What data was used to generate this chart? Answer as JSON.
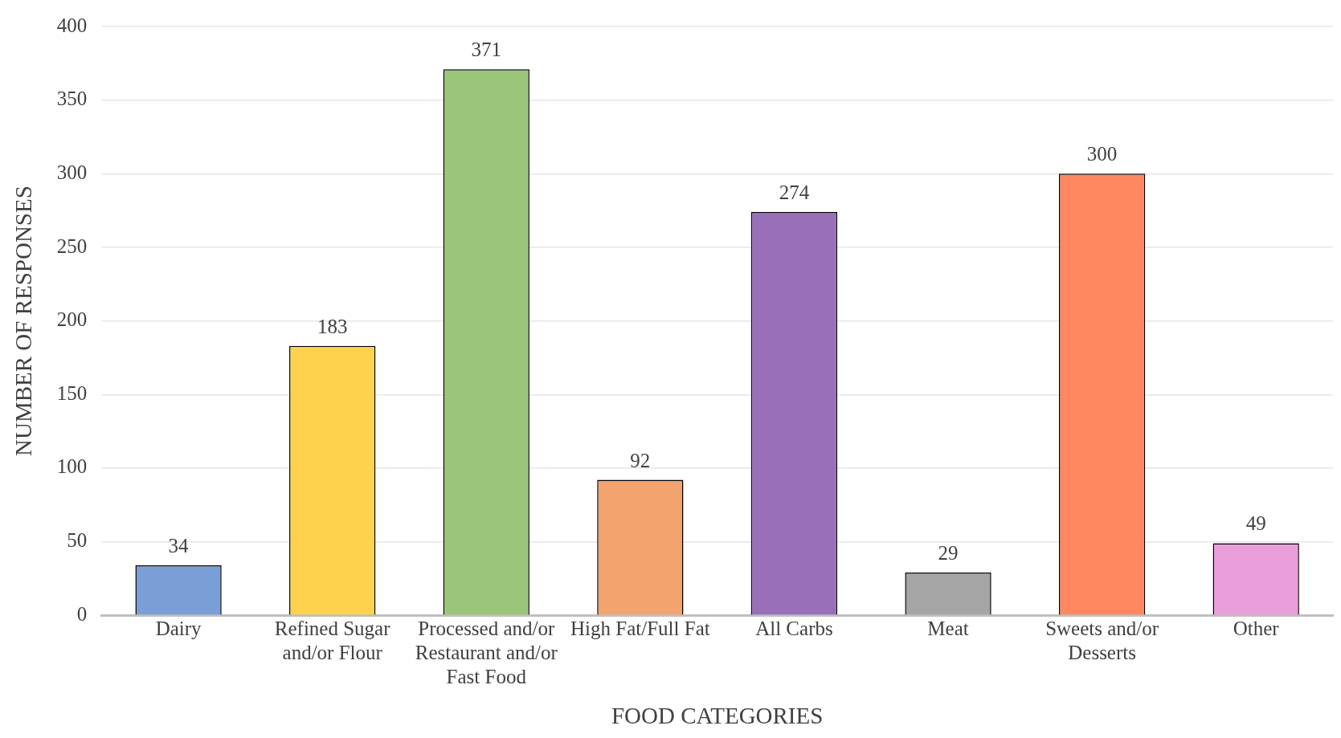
{
  "chart_data": {
    "type": "bar",
    "xlabel": "FOOD CATEGORIES",
    "ylabel": "NUMBER OF RESPONSES",
    "categories": [
      "Dairy",
      "Refined Sugar and/or Flour",
      "Processed and/or Restaurant and/or Fast Food",
      "High Fat/Full Fat",
      "All Carbs",
      "Meat",
      "Sweets and/or Desserts",
      "Other"
    ],
    "values": [
      34,
      183,
      371,
      92,
      274,
      29,
      300,
      49
    ],
    "colors": [
      "#7a9fd6",
      "#ffd24d",
      "#9bc57a",
      "#f2a36e",
      "#9a6fba",
      "#a5a5a5",
      "#ff8860",
      "#eb9fda"
    ],
    "ylim": [
      0,
      400
    ],
    "yticks": [
      0,
      50,
      100,
      150,
      200,
      250,
      300,
      350,
      400
    ],
    "grid": "y",
    "data_labels": true
  }
}
